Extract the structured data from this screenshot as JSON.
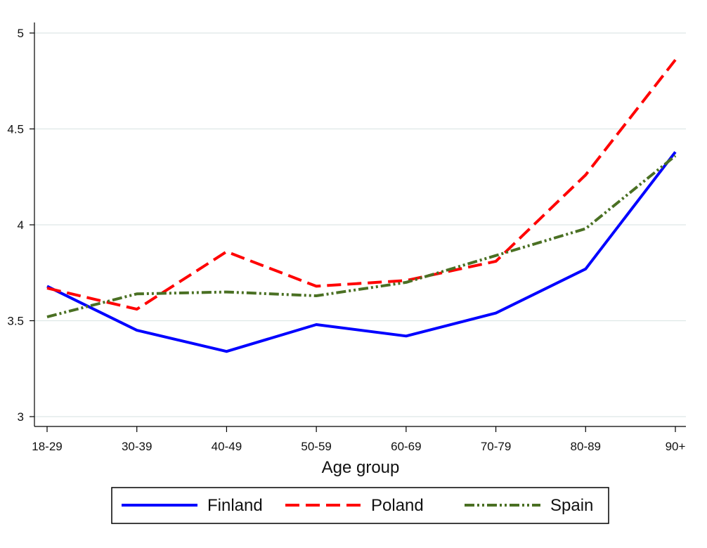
{
  "chart_data": {
    "type": "line",
    "title": "",
    "xlabel": "Age group",
    "ylabel": "",
    "categories": [
      "18-29",
      "30-39",
      "40-49",
      "50-59",
      "60-69",
      "70-79",
      "80-89",
      "90+"
    ],
    "ylim": [
      3,
      5
    ],
    "yticks": [
      3,
      3.5,
      4,
      4.5,
      5
    ],
    "ytick_labels": [
      "3",
      "3.5",
      "4",
      "4.5",
      "5"
    ],
    "grid": true,
    "legend_position": "bottom",
    "series": [
      {
        "name": "Finland",
        "color": "#0000ff",
        "style": "solid",
        "values": [
          3.68,
          3.45,
          3.34,
          3.48,
          3.42,
          3.54,
          3.77,
          4.38
        ]
      },
      {
        "name": "Poland",
        "color": "#ff0000",
        "style": "dash",
        "values": [
          3.67,
          3.56,
          3.86,
          3.68,
          3.71,
          3.81,
          4.26,
          4.86
        ]
      },
      {
        "name": "Spain",
        "color": "#4a7023",
        "style": "dash-dot",
        "values": [
          3.52,
          3.64,
          3.65,
          3.63,
          3.7,
          3.84,
          3.98,
          4.36
        ]
      }
    ]
  }
}
